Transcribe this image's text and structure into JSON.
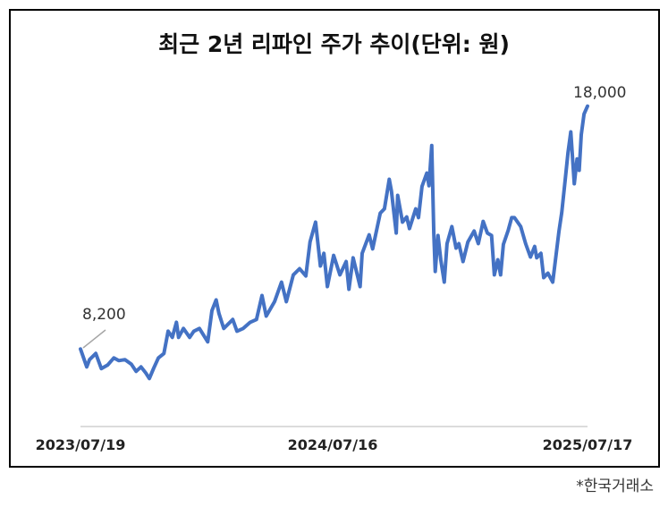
{
  "chart_data": {
    "type": "line",
    "title": "최근 2년 리파인 주가 추이(단위: 원)",
    "xlabel": "",
    "ylabel": "",
    "x_tick_labels": [
      "2023/07/19",
      "2024/07/16",
      "2025/07/17"
    ],
    "xlim": [
      "2023-07-19",
      "2025-07-17"
    ],
    "ylim": [
      5000,
      19000
    ],
    "grid": false,
    "legend": "none",
    "line_color": "#4472C4",
    "annotations": [
      {
        "text": "8,200",
        "x": "2023-07-19",
        "y": 8200
      },
      {
        "text": "18,000",
        "x": "2025-07-17",
        "y": 18000
      }
    ],
    "series": [
      {
        "x": [
          "2023-07-19",
          "2023-07-28",
          "2023-08-01",
          "2023-08-10",
          "2023-08-18",
          "2023-08-27",
          "2023-09-05",
          "2023-09-12",
          "2023-09-21",
          "2023-09-30",
          "2023-10-07",
          "2023-10-14",
          "2023-10-21",
          "2023-10-26",
          "2023-11-01",
          "2023-11-08",
          "2023-11-16",
          "2023-11-22",
          "2023-11-28",
          "2023-12-04",
          "2023-12-07",
          "2023-12-14",
          "2023-12-23",
          "2023-12-29",
          "2024-01-06",
          "2024-01-18",
          "2024-01-24",
          "2024-01-30",
          "2024-02-03",
          "2024-02-10",
          "2024-02-23",
          "2024-02-29",
          "2024-03-09",
          "2024-03-19",
          "2024-03-28",
          "2024-04-05",
          "2024-04-11",
          "2024-04-23",
          "2024-05-03",
          "2024-05-10",
          "2024-05-20",
          "2024-05-29",
          "2024-06-07",
          "2024-06-13",
          "2024-06-21",
          "2024-06-28",
          "2024-07-03",
          "2024-07-08",
          "2024-07-17",
          "2024-07-26",
          "2024-08-04",
          "2024-08-08",
          "2024-08-14",
          "2024-08-24",
          "2024-08-27",
          "2024-09-06",
          "2024-09-11",
          "2024-09-22",
          "2024-09-28",
          "2024-10-05",
          "2024-10-08",
          "2024-10-15",
          "2024-10-17",
          "2024-10-24",
          "2024-10-30",
          "2024-11-03",
          "2024-11-12",
          "2024-11-16",
          "2024-11-21",
          "2024-11-28",
          "2024-12-01",
          "2024-12-05",
          "2024-12-08",
          "2024-12-10",
          "2024-12-14",
          "2024-12-18",
          "2024-12-23",
          "2024-12-27",
          "2025-01-03",
          "2025-01-09",
          "2025-01-13",
          "2025-01-19",
          "2025-01-26",
          "2025-02-04",
          "2025-02-10",
          "2025-02-17",
          "2025-02-23",
          "2025-03-01",
          "2025-03-05",
          "2025-03-10",
          "2025-03-14",
          "2025-03-18",
          "2025-03-25",
          "2025-03-30",
          "2025-04-03",
          "2025-04-12",
          "2025-04-19",
          "2025-04-26",
          "2025-05-02",
          "2025-05-05",
          "2025-05-11",
          "2025-05-15",
          "2025-05-21",
          "2025-05-28",
          "2025-06-06",
          "2025-06-10",
          "2025-06-15",
          "2025-06-19",
          "2025-06-23",
          "2025-06-28",
          "2025-07-02",
          "2025-07-05",
          "2025-07-08",
          "2025-07-12",
          "2025-07-17"
        ],
        "values": [
          8200,
          7480,
          7770,
          8020,
          7410,
          7550,
          7840,
          7730,
          7770,
          7590,
          7300,
          7480,
          7230,
          7010,
          7410,
          7840,
          8020,
          8920,
          8670,
          9280,
          8670,
          9030,
          8670,
          8920,
          9030,
          8490,
          9750,
          10180,
          9640,
          9030,
          9390,
          8920,
          9030,
          9280,
          9390,
          10360,
          9530,
          10110,
          10900,
          10110,
          11190,
          11440,
          11150,
          12520,
          13320,
          11550,
          12060,
          10720,
          11980,
          11190,
          11730,
          10610,
          11880,
          10720,
          12060,
          12810,
          12240,
          13680,
          13860,
          15050,
          14580,
          12880,
          14400,
          13320,
          13530,
          13060,
          13860,
          13500,
          14760,
          15300,
          14790,
          16410,
          12880,
          11330,
          12780,
          11800,
          10900,
          12450,
          13140,
          12270,
          12450,
          11730,
          12520,
          12960,
          12450,
          13350,
          12880,
          12780,
          11190,
          11800,
          11190,
          12420,
          12990,
          13500,
          13500,
          13140,
          12450,
          11910,
          12340,
          11880,
          12060,
          11080,
          11260,
          10900,
          12960,
          13710,
          15050,
          16130,
          16960,
          14870,
          15870,
          15410,
          16850,
          17680,
          18000
        ]
      }
    ]
  },
  "source": "*한국거래소"
}
